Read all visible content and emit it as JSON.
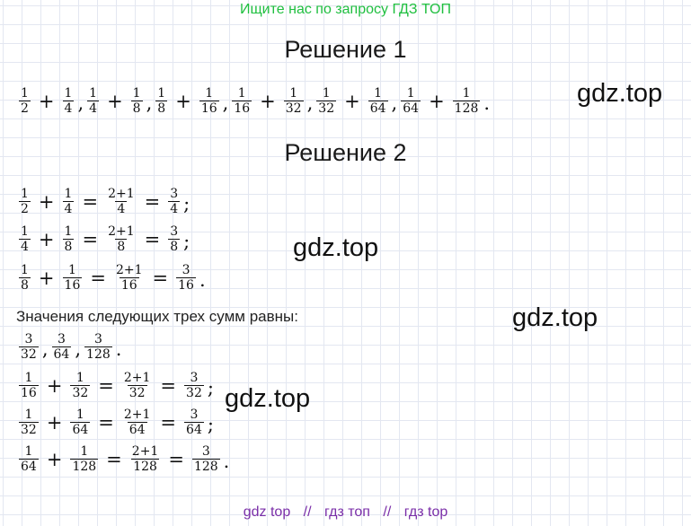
{
  "top_link": "Ищите нас по запросу ГДЗ ТОП",
  "solution1_title": "Решение 1",
  "solution2_title": "Решение 2",
  "watermark": "gdz.top",
  "text_line": "Значения следующих трех сумм равны:",
  "footer": {
    "items": [
      "gdz top",
      "гдз топ",
      "гдз top"
    ],
    "separator": "//"
  },
  "equations": [
    {
      "tokens": [
        {
          "n": "1",
          "d": "2"
        },
        {
          "o": "+"
        },
        {
          "n": "1",
          "d": "4"
        },
        {
          "p": ","
        },
        {
          "n": "1",
          "d": "4"
        },
        {
          "o": "+"
        },
        {
          "n": "1",
          "d": "8"
        },
        {
          "p": ","
        },
        {
          "n": "1",
          "d": "8"
        },
        {
          "o": "+"
        },
        {
          "n": "1",
          "d": "16"
        },
        {
          "p": ","
        },
        {
          "n": "1",
          "d": "16"
        },
        {
          "o": "+"
        },
        {
          "n": "1",
          "d": "32"
        },
        {
          "p": ","
        },
        {
          "n": "1",
          "d": "32"
        },
        {
          "o": "+"
        },
        {
          "n": "1",
          "d": "64"
        },
        {
          "p": ","
        },
        {
          "n": "1",
          "d": "64"
        },
        {
          "o": "+"
        },
        {
          "n": "1",
          "d": "128"
        },
        {
          "p": "."
        }
      ]
    },
    {
      "tokens": [
        {
          "n": "1",
          "d": "2"
        },
        {
          "o": "+"
        },
        {
          "n": "1",
          "d": "4"
        },
        {
          "o": "="
        },
        {
          "n": "2+1",
          "d": "4"
        },
        {
          "o": "="
        },
        {
          "n": "3",
          "d": "4"
        },
        {
          "p": ";"
        }
      ]
    },
    {
      "tokens": [
        {
          "n": "1",
          "d": "4"
        },
        {
          "o": "+"
        },
        {
          "n": "1",
          "d": "8"
        },
        {
          "o": "="
        },
        {
          "n": "2+1",
          "d": "8"
        },
        {
          "o": "="
        },
        {
          "n": "3",
          "d": "8"
        },
        {
          "p": ";"
        }
      ]
    },
    {
      "tokens": [
        {
          "n": "1",
          "d": "8"
        },
        {
          "o": "+"
        },
        {
          "n": "1",
          "d": "16"
        },
        {
          "o": "="
        },
        {
          "n": "2+1",
          "d": "16"
        },
        {
          "o": "="
        },
        {
          "n": "3",
          "d": "16"
        },
        {
          "p": "."
        }
      ]
    },
    {
      "tokens": [
        {
          "n": "3",
          "d": "32"
        },
        {
          "p": ","
        },
        {
          "n": "3",
          "d": "64"
        },
        {
          "p": ","
        },
        {
          "n": "3",
          "d": "128"
        },
        {
          "p": "."
        }
      ]
    },
    {
      "tokens": [
        {
          "n": "1",
          "d": "16"
        },
        {
          "o": "+"
        },
        {
          "n": "1",
          "d": "32"
        },
        {
          "o": "="
        },
        {
          "n": "2+1",
          "d": "32"
        },
        {
          "o": "="
        },
        {
          "n": "3",
          "d": "32"
        },
        {
          "p": ";"
        }
      ]
    },
    {
      "tokens": [
        {
          "n": "1",
          "d": "32"
        },
        {
          "o": "+"
        },
        {
          "n": "1",
          "d": "64"
        },
        {
          "o": "="
        },
        {
          "n": "2+1",
          "d": "64"
        },
        {
          "o": "="
        },
        {
          "n": "3",
          "d": "64"
        },
        {
          "p": ";"
        }
      ]
    },
    {
      "tokens": [
        {
          "n": "1",
          "d": "64"
        },
        {
          "o": "+"
        },
        {
          "n": "1",
          "d": "128"
        },
        {
          "o": "="
        },
        {
          "n": "2+1",
          "d": "128"
        },
        {
          "o": "="
        },
        {
          "n": "3",
          "d": "128"
        },
        {
          "p": "."
        }
      ]
    }
  ]
}
